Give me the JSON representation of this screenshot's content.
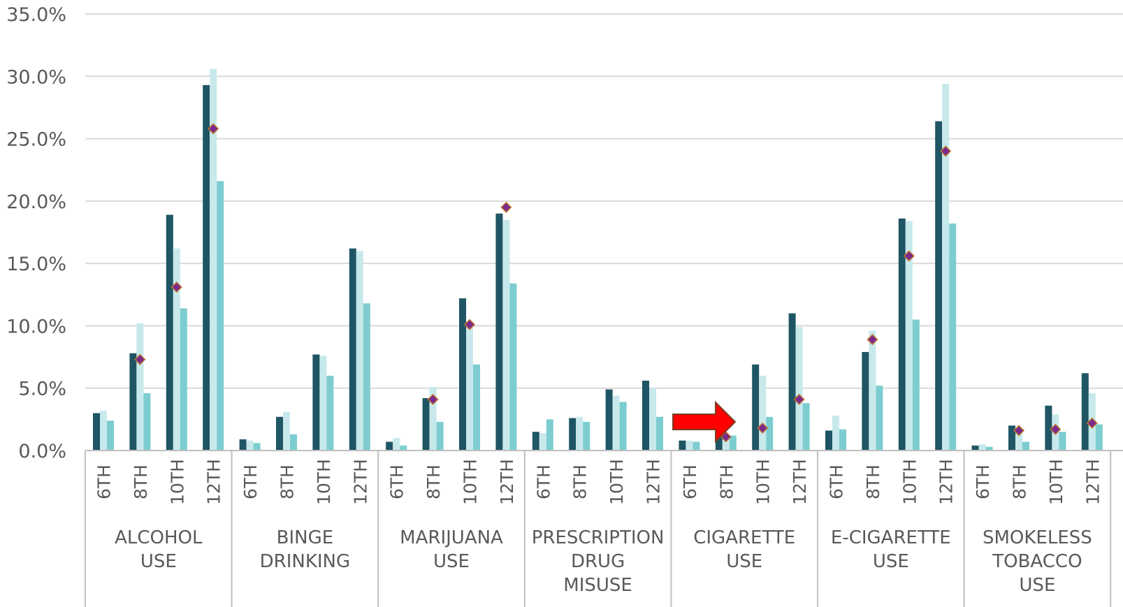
{
  "chart_data": {
    "type": "bar",
    "title": "",
    "xlabel": "",
    "ylabel": "",
    "ylim": [
      0,
      35
    ],
    "y_ticks": [
      "0.0%",
      "5.0%",
      "10.0%",
      "15.0%",
      "20.0%",
      "25.0%",
      "30.0%",
      "35.0%"
    ],
    "grid": true,
    "legend": "none",
    "grades": [
      "6TH",
      "8TH",
      "10TH",
      "12TH"
    ],
    "groups": [
      {
        "label_lines": [
          "ALCOHOL",
          "USE"
        ],
        "values": [
          [
            3.0,
            3.2,
            2.4
          ],
          [
            7.8,
            10.2,
            4.6
          ],
          [
            18.9,
            16.2,
            11.4
          ],
          [
            29.3,
            30.6,
            21.6
          ]
        ],
        "markers": [
          null,
          7.3,
          13.1,
          25.8
        ]
      },
      {
        "label_lines": [
          "BINGE",
          "DRINKING"
        ],
        "values": [
          [
            0.9,
            0.8,
            0.6
          ],
          [
            2.7,
            3.1,
            1.3
          ],
          [
            7.7,
            7.6,
            6.0
          ],
          [
            16.2,
            16.0,
            11.8
          ]
        ],
        "markers": [
          null,
          null,
          null,
          null
        ]
      },
      {
        "label_lines": [
          "MARIJUANA",
          "USE"
        ],
        "values": [
          [
            0.7,
            1.0,
            0.4
          ],
          [
            4.2,
            5.1,
            2.3
          ],
          [
            12.2,
            10.1,
            6.9
          ],
          [
            19.0,
            18.5,
            13.4
          ]
        ],
        "markers": [
          null,
          4.1,
          10.1,
          19.5
        ]
      },
      {
        "label_lines": [
          "PRESCRIPTION",
          "DRUG",
          "MISUSE"
        ],
        "values": [
          [
            1.5,
            1.4,
            2.5
          ],
          [
            2.6,
            2.7,
            2.3
          ],
          [
            4.9,
            4.4,
            3.9
          ],
          [
            5.6,
            5.0,
            2.7
          ]
        ],
        "markers": [
          null,
          null,
          null,
          null
        ]
      },
      {
        "label_lines": [
          "CIGARETTE",
          "USE"
        ],
        "values": [
          [
            0.8,
            0.8,
            0.7
          ],
          [
            1.3,
            1.0,
            1.2
          ],
          [
            6.9,
            6.0,
            2.7
          ],
          [
            11.0,
            9.9,
            3.8
          ]
        ],
        "markers": [
          null,
          1.1,
          1.8,
          4.1
        ]
      },
      {
        "label_lines": [
          "E-CIGARETTE",
          "USE"
        ],
        "values": [
          [
            1.6,
            2.8,
            1.7
          ],
          [
            7.9,
            9.6,
            5.2
          ],
          [
            18.6,
            18.4,
            10.5
          ],
          [
            26.4,
            29.4,
            18.2
          ]
        ],
        "markers": [
          null,
          8.9,
          15.6,
          24.0
        ]
      },
      {
        "label_lines": [
          "SMOKELESS",
          "TOBACCO",
          "USE"
        ],
        "values": [
          [
            0.4,
            0.5,
            0.3
          ],
          [
            2.0,
            1.7,
            0.7
          ],
          [
            3.6,
            2.9,
            1.5
          ],
          [
            6.2,
            4.6,
            2.1
          ]
        ],
        "markers": [
          null,
          1.6,
          1.7,
          2.2
        ]
      }
    ],
    "colors": {
      "series": [
        "#1f5564",
        "#c8e9ec",
        "#7dcdd0"
      ],
      "marker_fill": "#7b2a8c",
      "marker_stroke": "#c0752f",
      "arrow_fill": "#ff0000",
      "arrow_stroke": "#7a3f23",
      "grid": "#d9d9d9",
      "axis": "#bfbfbf"
    },
    "annotation": {
      "type": "arrow",
      "points_to": "CIGARETTE USE 8TH"
    }
  }
}
